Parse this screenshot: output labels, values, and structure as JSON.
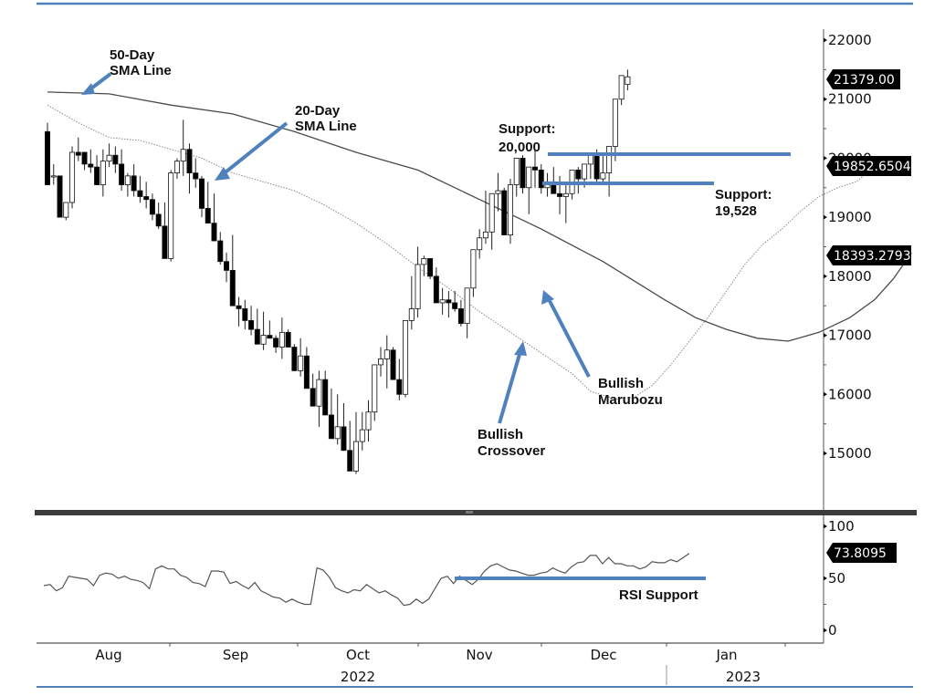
{
  "chart_data": {
    "type": "candlestick",
    "title": "",
    "price_panel": {
      "ylim": [
        14300,
        22300
      ],
      "yticks": [
        15000,
        16000,
        17000,
        18000,
        19000,
        20000,
        21000,
        22000
      ],
      "ytick_labels": [
        "15000",
        "16000",
        "17000",
        "18000",
        "19000",
        "20000",
        "21000",
        "22000"
      ],
      "last_value_tags": [
        {
          "label": "21379.00",
          "value": 21379.0,
          "series": "Close"
        },
        {
          "label": "19852.6504",
          "value": 19852.6504,
          "series": "20-Day SMA"
        },
        {
          "label": "18393.2793",
          "value": 18393.2793,
          "series": "50-Day SMA"
        }
      ],
      "candles_ohlc": [
        [
          20450,
          20600,
          19800,
          19550
        ],
        [
          19700,
          19900,
          19550,
          19700
        ],
        [
          19700,
          19700,
          19550,
          19000
        ],
        [
          19000,
          19250,
          18950,
          19250
        ],
        [
          19250,
          20200,
          19150,
          20100
        ],
        [
          20100,
          20350,
          19950,
          20050
        ],
        [
          20100,
          20100,
          19800,
          19900
        ],
        [
          19900,
          20150,
          19750,
          19850
        ],
        [
          19850,
          20050,
          19700,
          19550
        ],
        [
          19550,
          20150,
          19350,
          19950
        ],
        [
          19950,
          20250,
          19850,
          20050
        ],
        [
          20050,
          20200,
          19750,
          19900
        ],
        [
          19900,
          20150,
          19450,
          19550
        ],
        [
          19550,
          19750,
          19350,
          19700
        ],
        [
          19700,
          19900,
          19350,
          19450
        ],
        [
          19450,
          19700,
          19250,
          19350
        ],
        [
          19350,
          19600,
          19150,
          19300
        ],
        [
          19300,
          19400,
          18950,
          19050
        ],
        [
          19050,
          19250,
          18800,
          18850
        ],
        [
          18850,
          19250,
          18600,
          18300
        ],
        [
          18300,
          19800,
          18250,
          19750
        ],
        [
          19750,
          20000,
          19650,
          19950
        ],
        [
          19950,
          20650,
          19700,
          20150
        ],
        [
          20150,
          20250,
          19400,
          19750
        ],
        [
          19750,
          20000,
          19500,
          19650
        ],
        [
          19650,
          19700,
          19000,
          19150
        ],
        [
          19150,
          19600,
          18950,
          18900
        ],
        [
          18900,
          19400,
          18750,
          18600
        ],
        [
          18600,
          18750,
          18200,
          18250
        ],
        [
          18250,
          18400,
          17900,
          18100
        ],
        [
          18100,
          18700,
          17500,
          17500
        ],
        [
          17500,
          17650,
          17150,
          17450
        ],
        [
          17450,
          17600,
          17100,
          17250
        ],
        [
          17250,
          17500,
          17000,
          17100
        ],
        [
          17100,
          17450,
          16900,
          16850
        ],
        [
          16850,
          17400,
          16750,
          17000
        ],
        [
          17000,
          17250,
          16950,
          16950
        ],
        [
          16950,
          17000,
          16700,
          16800
        ],
        [
          16800,
          17300,
          16600,
          17050
        ],
        [
          17050,
          17100,
          16900,
          16800
        ],
        [
          16800,
          16850,
          16650,
          16400
        ],
        [
          16400,
          16950,
          16300,
          16650
        ],
        [
          16650,
          16800,
          16450,
          16100
        ],
        [
          16100,
          16350,
          15950,
          15800
        ],
        [
          15800,
          16400,
          15450,
          16250
        ],
        [
          16250,
          16400,
          15900,
          15650
        ],
        [
          15650,
          16100,
          15400,
          15250
        ],
        [
          15250,
          16000,
          15150,
          15450
        ],
        [
          15450,
          15850,
          15200,
          15050
        ],
        [
          15050,
          15550,
          14900,
          14700
        ],
        [
          14700,
          15700,
          14650,
          15200
        ],
        [
          15200,
          15700,
          15050,
          15400
        ],
        [
          15400,
          15900,
          15200,
          15700
        ],
        [
          15700,
          16200,
          15550,
          16500
        ],
        [
          16500,
          16800,
          16300,
          16600
        ],
        [
          16600,
          17000,
          16100,
          16750
        ],
        [
          16750,
          16800,
          16400,
          16250
        ],
        [
          16250,
          16600,
          15900,
          16000
        ],
        [
          16000,
          17050,
          15950,
          17250
        ],
        [
          17250,
          18000,
          17100,
          17450
        ],
        [
          17450,
          18500,
          17300,
          18200
        ],
        [
          18200,
          18350,
          18000,
          18300
        ],
        [
          18300,
          18300,
          17950,
          18000
        ],
        [
          18000,
          18150,
          17750,
          17550
        ],
        [
          17550,
          17800,
          17350,
          17600
        ],
        [
          17600,
          17750,
          17300,
          17550
        ],
        [
          17550,
          17750,
          17400,
          17450
        ],
        [
          17450,
          17600,
          17150,
          17200
        ],
        [
          17200,
          17550,
          16950,
          17800
        ],
        [
          17800,
          18300,
          17650,
          18450
        ],
        [
          18450,
          18800,
          18300,
          18650
        ],
        [
          18650,
          19450,
          18550,
          18750
        ],
        [
          18750,
          19100,
          18450,
          19400
        ],
        [
          19400,
          19750,
          19100,
          19450
        ],
        [
          19450,
          19500,
          18750,
          18700
        ],
        [
          18700,
          19650,
          18550,
          19550
        ],
        [
          19550,
          19950,
          19350,
          20000
        ],
        [
          20000,
          20050,
          19400,
          19500
        ],
        [
          19500,
          19600,
          19050,
          19850
        ],
        [
          19850,
          20150,
          19500,
          19800
        ],
        [
          19800,
          19900,
          19400,
          19500
        ],
        [
          19500,
          19750,
          19350,
          19600
        ],
        [
          19600,
          19850,
          19550,
          19400
        ],
        [
          19400,
          19700,
          19050,
          19350
        ],
        [
          19350,
          19600,
          18900,
          19400
        ],
        [
          19400,
          19700,
          19300,
          19800
        ],
        [
          19800,
          19850,
          19400,
          19650
        ],
        [
          19650,
          19700,
          19500,
          19900
        ],
        [
          19900,
          20100,
          19650,
          20050
        ],
        [
          20050,
          20150,
          19600,
          19650
        ],
        [
          19650,
          20050,
          19550,
          19750
        ],
        [
          19750,
          20100,
          19350,
          20200
        ],
        [
          20200,
          20500,
          19950,
          21000
        ],
        [
          21000,
          21350,
          20900,
          21400
        ],
        [
          21250,
          21500,
          21150,
          21379
        ]
      ],
      "sma20": [
        [
          0,
          20900
        ],
        [
          5,
          20600
        ],
        [
          10,
          20350
        ],
        [
          15,
          20300
        ],
        [
          20,
          20150
        ],
        [
          25,
          20000
        ],
        [
          30,
          19750
        ],
        [
          35,
          19600
        ],
        [
          40,
          19450
        ],
        [
          45,
          19200
        ],
        [
          50,
          18900
        ],
        [
          55,
          18550
        ],
        [
          60,
          18150
        ],
        [
          65,
          17800
        ],
        [
          70,
          17400
        ],
        [
          75,
          17050
        ],
        [
          80,
          16700
        ],
        [
          85,
          16350
        ],
        [
          88,
          16050
        ],
        [
          92,
          15920
        ],
        [
          95,
          15950
        ],
        [
          98,
          16150
        ],
        [
          101,
          16500
        ],
        [
          104,
          16900
        ],
        [
          107,
          17300
        ],
        [
          110,
          17750
        ],
        [
          113,
          18200
        ],
        [
          116,
          18550
        ],
        [
          119,
          18800
        ],
        [
          122,
          19100
        ],
        [
          125,
          19350
        ],
        [
          128,
          19500
        ],
        [
          131,
          19600
        ],
        [
          134,
          19850
        ]
      ],
      "sma50": [
        [
          0,
          21120
        ],
        [
          10,
          21090
        ],
        [
          20,
          20900
        ],
        [
          30,
          20750
        ],
        [
          40,
          20450
        ],
        [
          50,
          20100
        ],
        [
          60,
          19800
        ],
        [
          70,
          19300
        ],
        [
          80,
          18800
        ],
        [
          90,
          18250
        ],
        [
          100,
          17600
        ],
        [
          105,
          17300
        ],
        [
          110,
          17100
        ],
        [
          115,
          16950
        ],
        [
          120,
          16900
        ],
        [
          125,
          17050
        ],
        [
          130,
          17300
        ],
        [
          134,
          17600
        ],
        [
          137,
          17950
        ],
        [
          140,
          18393
        ]
      ],
      "support_lines": [
        {
          "label": "Support: 20,000",
          "value": 20000
        },
        {
          "label": "Support: 19,528",
          "value": 19528
        }
      ]
    },
    "rsi_panel": {
      "ylim": [
        -10,
        115
      ],
      "yticks": [
        0,
        50,
        100
      ],
      "ytick_labels": [
        "0",
        "50",
        "100"
      ],
      "last_value_tag": {
        "label": "73.8095",
        "value": 73.8095
      },
      "support_line": {
        "label": "RSI Support",
        "value": 49
      },
      "values": [
        43,
        44,
        38,
        41,
        52,
        51,
        50,
        49,
        43,
        53,
        55,
        54,
        50,
        52,
        49,
        48,
        46,
        40,
        59,
        62,
        59,
        59,
        53,
        51,
        46,
        45,
        42,
        57,
        57,
        56,
        45,
        47,
        43,
        40,
        46,
        38,
        35,
        32,
        31,
        27,
        30,
        27,
        25,
        25,
        60,
        58,
        51,
        41,
        38,
        36,
        39,
        38,
        44,
        40,
        36,
        38,
        34,
        31,
        24,
        25,
        30,
        26,
        30,
        40,
        50,
        52,
        45,
        52,
        48,
        44,
        49,
        57,
        62,
        64,
        61,
        58,
        57,
        55,
        53,
        53,
        55,
        56,
        60,
        57,
        55,
        61,
        65,
        66,
        72,
        72,
        64,
        70,
        64,
        64,
        62,
        62,
        59,
        61,
        66,
        65,
        65,
        68,
        66,
        70,
        74
      ]
    },
    "x_axis": {
      "month_labels": [
        "Aug",
        "Sep",
        "Oct",
        "Nov",
        "Dec",
        "Jan"
      ],
      "year_labels": [
        "2022",
        "2023"
      ]
    },
    "annotations": [
      {
        "text": [
          "50-Day",
          "SMA Line"
        ]
      },
      {
        "text": [
          "20-Day",
          "SMA Line"
        ]
      },
      {
        "text": [
          "Support:",
          "20,000"
        ]
      },
      {
        "text": [
          "Support:",
          "19,528"
        ]
      },
      {
        "text": [
          "Bullish",
          "Crossover"
        ]
      },
      {
        "text": [
          "Bullish",
          "Marubozu"
        ]
      },
      {
        "text": [
          "RSI Support"
        ]
      }
    ],
    "legend": null,
    "grid": false
  },
  "colors": {
    "accent_blue": "#4f81bd",
    "candle_up_fill": "#ffffff",
    "candle_down_fill": "#000000",
    "sma50": "#4a4a4a",
    "sma20": "#888888",
    "tag_bg": "#000000",
    "panel_divider": "#3c3c3c"
  }
}
